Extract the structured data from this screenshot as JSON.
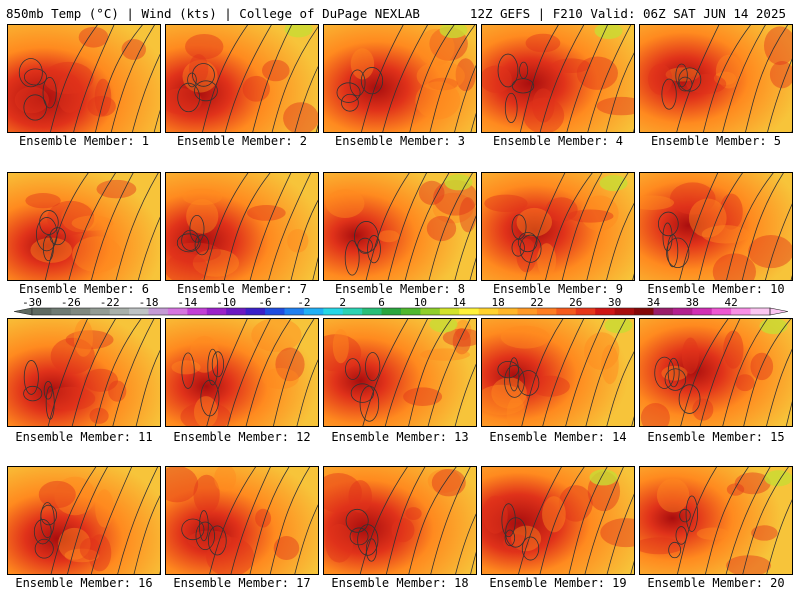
{
  "header": {
    "left": "850mb Temp (°C) | Wind (kts) | College of DuPage NEXLAB",
    "right": "12Z GEFS | F210 Valid: 06Z SAT JUN 14 2025"
  },
  "panels": [
    {
      "label": "Ensemble Member: 1",
      "intensity": 0.85
    },
    {
      "label": "Ensemble Member: 2",
      "intensity": 0.7
    },
    {
      "label": "Ensemble Member: 3",
      "intensity": 0.65
    },
    {
      "label": "Ensemble Member: 4",
      "intensity": 0.7
    },
    {
      "label": "Ensemble Member: 5",
      "intensity": 0.6
    },
    {
      "label": "Ensemble Member: 6",
      "intensity": 0.55
    },
    {
      "label": "Ensemble Member: 7",
      "intensity": 0.7
    },
    {
      "label": "Ensemble Member: 8",
      "intensity": 0.45
    },
    {
      "label": "Ensemble Member: 9",
      "intensity": 0.6
    },
    {
      "label": "Ensemble Member: 10",
      "intensity": 0.55
    },
    {
      "label": "Ensemble Member: 11",
      "intensity": 0.6
    },
    {
      "label": "Ensemble Member: 12",
      "intensity": 0.5
    },
    {
      "label": "Ensemble Member: 13",
      "intensity": 0.5
    },
    {
      "label": "Ensemble Member: 14",
      "intensity": 0.55
    },
    {
      "label": "Ensemble Member: 15",
      "intensity": 0.6
    },
    {
      "label": "Ensemble Member: 16",
      "intensity": 0.65
    },
    {
      "label": "Ensemble Member: 17",
      "intensity": 0.6
    },
    {
      "label": "Ensemble Member: 18",
      "intensity": 0.75
    },
    {
      "label": "Ensemble Member: 19",
      "intensity": 0.85
    },
    {
      "label": "Ensemble Member: 20",
      "intensity": 0.45
    }
  ],
  "colorbar": {
    "tick_labels": [
      "-30",
      "-26",
      "-22",
      "-18",
      "-14",
      "-10",
      "-6",
      "-2",
      "2",
      "6",
      "10",
      "14",
      "18",
      "22",
      "26",
      "30",
      "34",
      "38",
      "42"
    ],
    "colors": [
      "#5f6a61",
      "#6f7b73",
      "#80897f",
      "#939c94",
      "#a8b0aa",
      "#bec3c4",
      "#c59ad6",
      "#d675e0",
      "#c23fd6",
      "#9b22c9",
      "#6b19c2",
      "#3a20c8",
      "#1f4de0",
      "#1f7ff0",
      "#21b0f5",
      "#27d7e6",
      "#2bd3b3",
      "#28bf78",
      "#2aa63e",
      "#4fb82e",
      "#8fcf2a",
      "#d2e32a",
      "#fff23a",
      "#ffd22d",
      "#ffb628",
      "#ff9926",
      "#ff7d22",
      "#f55a1d",
      "#e7361a",
      "#cf1515",
      "#a80d0d",
      "#850808",
      "#9a1d6a",
      "#b3208f",
      "#d12fb4",
      "#ee57d2",
      "#f98fe6",
      "#fbc6f1"
    ]
  },
  "temperature_scale": {
    "low": "#f7c43a",
    "mid": "#ff8a1f",
    "high": "#e0321a",
    "peak": "#a90e0e"
  }
}
